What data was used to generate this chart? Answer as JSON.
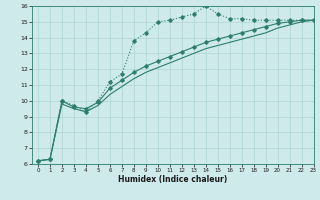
{
  "xlabel": "Humidex (Indice chaleur)",
  "ylabel": "",
  "bg_color": "#ceeaea",
  "grid_color": "#afd4d4",
  "line_color": "#2e7d6e",
  "xlim": [
    -0.5,
    23
  ],
  "ylim": [
    6,
    16
  ],
  "xticks": [
    0,
    1,
    2,
    3,
    4,
    5,
    6,
    7,
    8,
    9,
    10,
    11,
    12,
    13,
    14,
    15,
    16,
    17,
    18,
    19,
    20,
    21,
    22,
    23
  ],
  "yticks": [
    6,
    7,
    8,
    9,
    10,
    11,
    12,
    13,
    14,
    15,
    16
  ],
  "line1_x": [
    0,
    1,
    2,
    3,
    4,
    5,
    6,
    7,
    8,
    9,
    10,
    11,
    12,
    13,
    14,
    15,
    16,
    17,
    18,
    19,
    20,
    21,
    22,
    23
  ],
  "line1_y": [
    6.2,
    6.3,
    10.0,
    9.7,
    9.3,
    10.0,
    11.2,
    11.7,
    13.8,
    14.3,
    15.0,
    15.1,
    15.3,
    15.5,
    16.0,
    15.5,
    15.2,
    15.2,
    15.1,
    15.1,
    15.1,
    15.1,
    15.1,
    15.1
  ],
  "line2_x": [
    0,
    1,
    2,
    3,
    4,
    5,
    6,
    7,
    8,
    9,
    10,
    11,
    12,
    13,
    14,
    15,
    16,
    17,
    18,
    19,
    20,
    21,
    22,
    23
  ],
  "line2_y": [
    6.2,
    6.3,
    10.0,
    9.6,
    9.5,
    9.9,
    10.8,
    11.3,
    11.8,
    12.2,
    12.5,
    12.8,
    13.1,
    13.4,
    13.7,
    13.9,
    14.1,
    14.3,
    14.5,
    14.7,
    14.9,
    15.0,
    15.1,
    15.1
  ],
  "line3_x": [
    0,
    1,
    2,
    3,
    4,
    5,
    6,
    7,
    8,
    9,
    10,
    11,
    12,
    13,
    14,
    15,
    16,
    17,
    18,
    19,
    20,
    21,
    22,
    23
  ],
  "line3_y": [
    6.2,
    6.3,
    9.8,
    9.5,
    9.3,
    9.7,
    10.4,
    10.9,
    11.4,
    11.8,
    12.1,
    12.4,
    12.7,
    13.0,
    13.3,
    13.5,
    13.7,
    13.9,
    14.1,
    14.3,
    14.6,
    14.8,
    15.0,
    15.1
  ]
}
